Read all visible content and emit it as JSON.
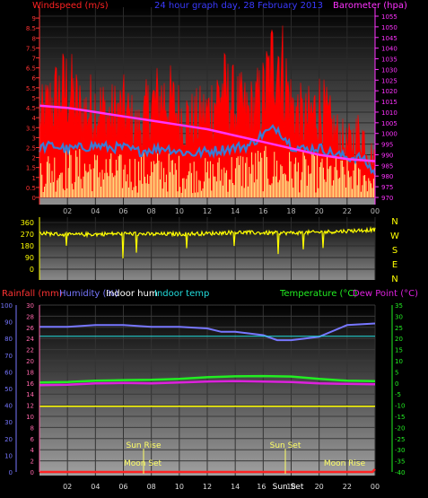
{
  "title": "24 hour graph day, 28 February 2013",
  "time_ticks": [
    "02",
    "04",
    "06",
    "08",
    "10",
    "12",
    "14",
    "16",
    "18",
    "20",
    "22",
    "00"
  ],
  "colors": {
    "wind": "#ff0000",
    "gust_avg": "#3a7bd5",
    "wind_calm": "#ffee88",
    "pressure": "#ff33ff",
    "direction": "#ffff00",
    "rain": "#ff2222",
    "humidity": "#7777ff",
    "indoor_hum": "#ffffff",
    "indoor_temp": "#22dddd",
    "temperature": "#22ee22",
    "dewpoint": "#dd22dd",
    "temp_axis": "#22ee22",
    "hum_axis": "#7777ff",
    "rain_axis": "#ff66aa",
    "compass": "#ffff00",
    "sun": "#ffff66"
  },
  "panel1": {
    "left_label": "Windspeed (m/s)",
    "right_label": "Barometer (hpa)"
  },
  "panel2": {
    "compass": [
      "N",
      "W",
      "S",
      "E",
      "N"
    ]
  },
  "panel3": {
    "legend_rain": "Rainfall (mm)",
    "legend_humidity": "Humidity (%)",
    "legend_indoor_hum": "Indoor hum",
    "legend_indoor_temp": "Indoor temp",
    "legend_temperature": "Temperature (°C)",
    "legend_dewpoint": "Dew Point (°C)",
    "sun_rise_label": "Sun Rise",
    "sun_set_label": "Sun Set",
    "moon_set_label": "Moon Set",
    "moon_rise_label": "Moon Rise"
  },
  "chart_data": [
    {
      "type": "line",
      "title": "24 hour graph day, 28 February 2013",
      "xlabel": "",
      "x_ticks": [
        "02",
        "04",
        "06",
        "08",
        "10",
        "12",
        "14",
        "16",
        "18",
        "20",
        "22",
        "00"
      ],
      "y_axis_left": {
        "label": "Windspeed (m/s)",
        "ylim": [
          0,
          9.5
        ],
        "ticks": [
          "0",
          "0.5",
          "1",
          "1.5",
          "2",
          "2.5",
          "3",
          "3.5",
          "4",
          "4.5",
          "5",
          "5.5",
          "6",
          "6.5",
          "7",
          "7.5",
          "8",
          "8.5",
          "9"
        ]
      },
      "y_axis_right": {
        "label": "Barometer (hpa)",
        "ylim": [
          970,
          1060
        ],
        "ticks": [
          "970",
          "975",
          "980",
          "985",
          "990",
          "995",
          "1000",
          "1005",
          "1010",
          "1015",
          "1020",
          "1025",
          "1030",
          "1035",
          "1040",
          "1045",
          "1050",
          "1055"
        ]
      },
      "series": [
        {
          "name": "Barometer",
          "axis": "right",
          "x": [
            0,
            2,
            4,
            6,
            8,
            10,
            12,
            14,
            16,
            18,
            20,
            22,
            24
          ],
          "values": [
            1013,
            1012,
            1010,
            1008,
            1006,
            1004,
            1002,
            999,
            996,
            993,
            990,
            988,
            987
          ]
        },
        {
          "name": "Wind gust",
          "axis": "left",
          "x": [
            0,
            1,
            2,
            3,
            4,
            5,
            6,
            7,
            8,
            9,
            10,
            11,
            12,
            13,
            14,
            15,
            16,
            17,
            18,
            19,
            20,
            21,
            22,
            23,
            24
          ],
          "values": [
            4.5,
            5.8,
            6.6,
            5.0,
            5.5,
            4.8,
            5.2,
            4.0,
            5.5,
            6.0,
            5.0,
            4.5,
            5.0,
            6.5,
            5.5,
            5.0,
            6.0,
            9.0,
            5.5,
            4.5,
            5.5,
            4.0,
            3.0,
            4.0,
            2.0
          ]
        },
        {
          "name": "Wind average",
          "axis": "left",
          "x": [
            0,
            1,
            2,
            3,
            4,
            5,
            6,
            7,
            8,
            9,
            10,
            11,
            12,
            13,
            14,
            15,
            16,
            17,
            18,
            19,
            20,
            21,
            22,
            23,
            24
          ],
          "values": [
            2.5,
            2.6,
            2.4,
            2.5,
            2.6,
            2.5,
            2.5,
            2.3,
            2.4,
            2.5,
            2.3,
            2.2,
            2.3,
            2.4,
            2.5,
            2.6,
            3.2,
            3.5,
            2.6,
            2.4,
            2.5,
            2.2,
            2.0,
            2.0,
            1.2
          ]
        },
        {
          "name": "Wind speed",
          "axis": "left",
          "x": [
            0,
            2,
            4,
            6,
            8,
            10,
            12,
            14,
            16,
            18,
            20,
            22,
            24
          ],
          "values": [
            1.2,
            1.3,
            1.2,
            1.1,
            1.2,
            1.1,
            1.0,
            1.2,
            1.3,
            1.2,
            1.1,
            1.0,
            0.8
          ]
        }
      ]
    },
    {
      "type": "line",
      "xlabel": "",
      "x_ticks": [
        "02",
        "04",
        "06",
        "08",
        "10",
        "12",
        "14",
        "16",
        "18",
        "20",
        "22",
        "00"
      ],
      "y_axis_left": {
        "label": "",
        "ylim": [
          0,
          360
        ],
        "ticks": [
          "0",
          "90",
          "180",
          "270",
          "360"
        ]
      },
      "series": [
        {
          "name": "Wind direction",
          "x": [
            0,
            2,
            4,
            6,
            8,
            10,
            12,
            14,
            16,
            18,
            20,
            22,
            24
          ],
          "values": [
            280,
            265,
            270,
            275,
            270,
            272,
            275,
            285,
            280,
            280,
            285,
            295,
            305
          ]
        }
      ]
    },
    {
      "type": "line",
      "xlabel": "",
      "x_ticks": [
        "02",
        "04",
        "06",
        "08",
        "10",
        "12",
        "14",
        "16",
        "18",
        "20",
        "22",
        "00"
      ],
      "y_axis_left": {
        "label": "Humidity (%)",
        "ylim": [
          0,
          100
        ],
        "ticks": [
          "0",
          "10",
          "20",
          "30",
          "40",
          "50",
          "60",
          "70",
          "80",
          "90",
          "100"
        ]
      },
      "y_axis_rain": {
        "label": "Rainfall (mm)",
        "ylim": [
          0,
          30
        ],
        "ticks": [
          "0",
          "2",
          "4",
          "6",
          "8",
          "10",
          "12",
          "14",
          "16",
          "18",
          "20",
          "22",
          "24",
          "26",
          "28",
          "30"
        ]
      },
      "y_axis_right": {
        "label": "Temperature (°C)",
        "ylim": [
          -40,
          35
        ],
        "ticks": [
          "-40",
          "-35",
          "-30",
          "-25",
          "-20",
          "-15",
          "-10",
          "-5",
          "0",
          "5",
          "10",
          "15",
          "20",
          "25",
          "30",
          "35"
        ]
      },
      "series": [
        {
          "name": "Humidity",
          "axis": "left",
          "x": [
            0,
            2,
            4,
            6,
            8,
            10,
            12,
            13,
            14,
            16,
            17,
            18,
            19,
            20,
            22,
            24
          ],
          "values": [
            87,
            87,
            88,
            88,
            87,
            87,
            86,
            84,
            84,
            82,
            79,
            79,
            80,
            81,
            88,
            89
          ]
        },
        {
          "name": "Indoor temp",
          "axis": "right",
          "x": [
            0,
            24
          ],
          "values": [
            21,
            21
          ]
        },
        {
          "name": "Temperature",
          "axis": "right",
          "x": [
            0,
            2,
            4,
            6,
            8,
            10,
            12,
            14,
            16,
            18,
            20,
            22,
            24
          ],
          "values": [
            0.2,
            0.4,
            1.0,
            1.3,
            1.4,
            1.8,
            2.6,
            3.0,
            3.1,
            2.9,
            1.8,
            1.0,
            0.8
          ]
        },
        {
          "name": "Dew Point",
          "axis": "right",
          "x": [
            0,
            2,
            4,
            6,
            8,
            10,
            12,
            14,
            16,
            18,
            20,
            22,
            24
          ],
          "values": [
            -1.0,
            -0.8,
            -0.2,
            0.0,
            -0.2,
            0.2,
            0.6,
            0.8,
            0.6,
            0.4,
            -0.2,
            -0.4,
            -0.6
          ]
        },
        {
          "name": "Indoor hum",
          "axis": "right",
          "x": [
            0,
            24
          ],
          "values": [
            -10.5,
            -10.5
          ]
        },
        {
          "name": "Rainfall",
          "axis": "rain",
          "x": [
            0,
            23.8,
            24
          ],
          "values": [
            0,
            0,
            0.5
          ]
        }
      ]
    }
  ]
}
